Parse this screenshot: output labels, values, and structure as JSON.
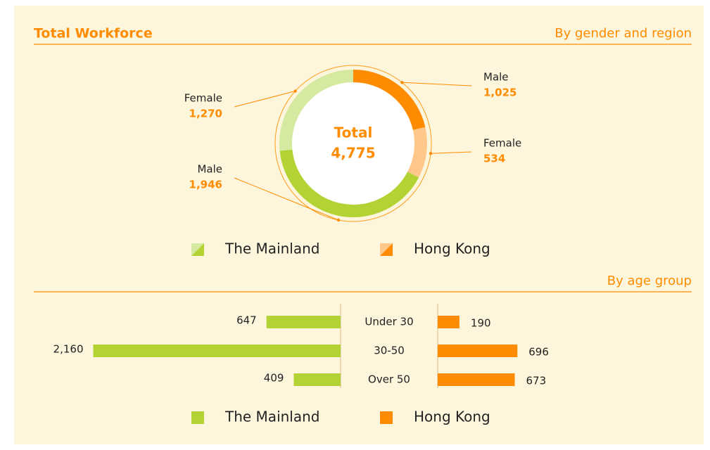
{
  "chart_data": [
    {
      "type": "donut",
      "title": "Total Workforce",
      "subtitle": "By gender and region",
      "center_label": "Total",
      "total": 4775,
      "total_label": "4,775",
      "series": [
        {
          "name": "The Mainland",
          "categories": [
            "Male",
            "Female"
          ],
          "values": [
            1946,
            1270
          ],
          "value_labels": [
            "1,946",
            "1,270"
          ],
          "colors": [
            "#b3d233",
            "#d6e9a0"
          ]
        },
        {
          "name": "Hong Kong",
          "categories": [
            "Male",
            "Female"
          ],
          "values": [
            1025,
            534
          ],
          "value_labels": [
            "1,025",
            "534"
          ],
          "colors": [
            "#ff8c00",
            "#ffc78a"
          ]
        }
      ]
    },
    {
      "type": "butterfly",
      "subtitle": "By age group",
      "categories": [
        "Under 30",
        "30-50",
        "Over 50"
      ],
      "xlim": [
        0,
        2200
      ],
      "series": [
        {
          "name": "The Mainland",
          "color": "#b3d233",
          "values": [
            647,
            2160,
            409
          ],
          "value_labels": [
            "647",
            "2,160",
            "409"
          ]
        },
        {
          "name": "Hong Kong",
          "color": "#ff8c00",
          "values": [
            190,
            696,
            673
          ]
        }
      ]
    }
  ]
}
